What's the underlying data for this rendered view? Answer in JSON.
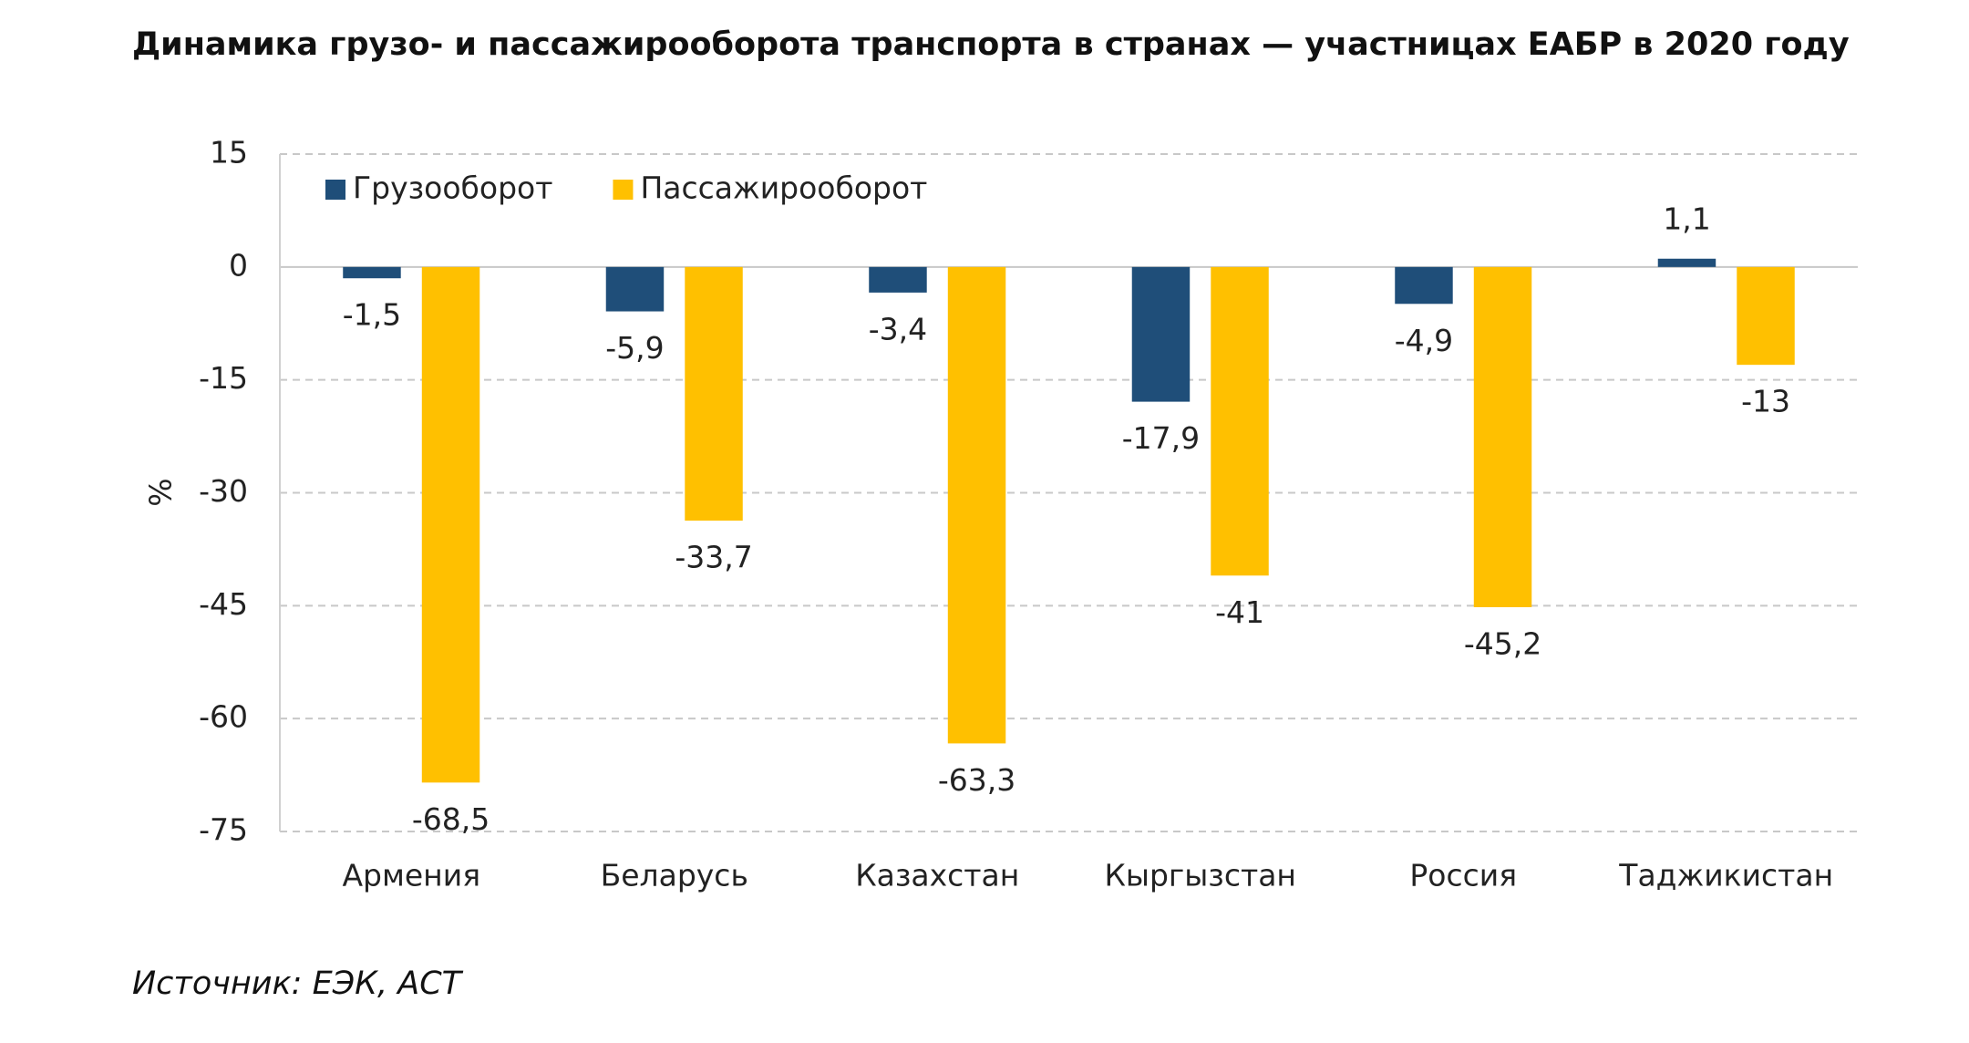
{
  "chart_data": {
    "type": "bar",
    "title": "Динамика грузо- и пассажирооборота транспорта в странах — участницах ЕАБР в 2020 году",
    "source": "Источник: ЕЭК, АСТ",
    "y_label": "%",
    "categories": [
      "Армения",
      "Беларусь",
      "Казахстан",
      "Кыргызстан",
      "Россия",
      "Таджикистан"
    ],
    "series": [
      {
        "name": "Грузооборот",
        "color": "#1f4e79",
        "values": [
          -1.5,
          -5.9,
          -3.4,
          -17.9,
          -4.9,
          1.1
        ],
        "value_labels": [
          "-1,5",
          "-5,9",
          "-3,4",
          "-17,9",
          "-4,9",
          "1,1"
        ]
      },
      {
        "name": "Пассажирооборот",
        "color": "#ffc000",
        "values": [
          -68.5,
          -33.7,
          -63.3,
          -41,
          -45.2,
          -13
        ],
        "value_labels": [
          "-68,5",
          "-33,7",
          "-63,3",
          "-41",
          "-45,2",
          "-13"
        ]
      }
    ],
    "ylim": [
      -75,
      15
    ],
    "yticks": [
      15,
      0,
      -15,
      -30,
      -45,
      -60,
      -75
    ],
    "grid": true,
    "legend": "top-left"
  }
}
